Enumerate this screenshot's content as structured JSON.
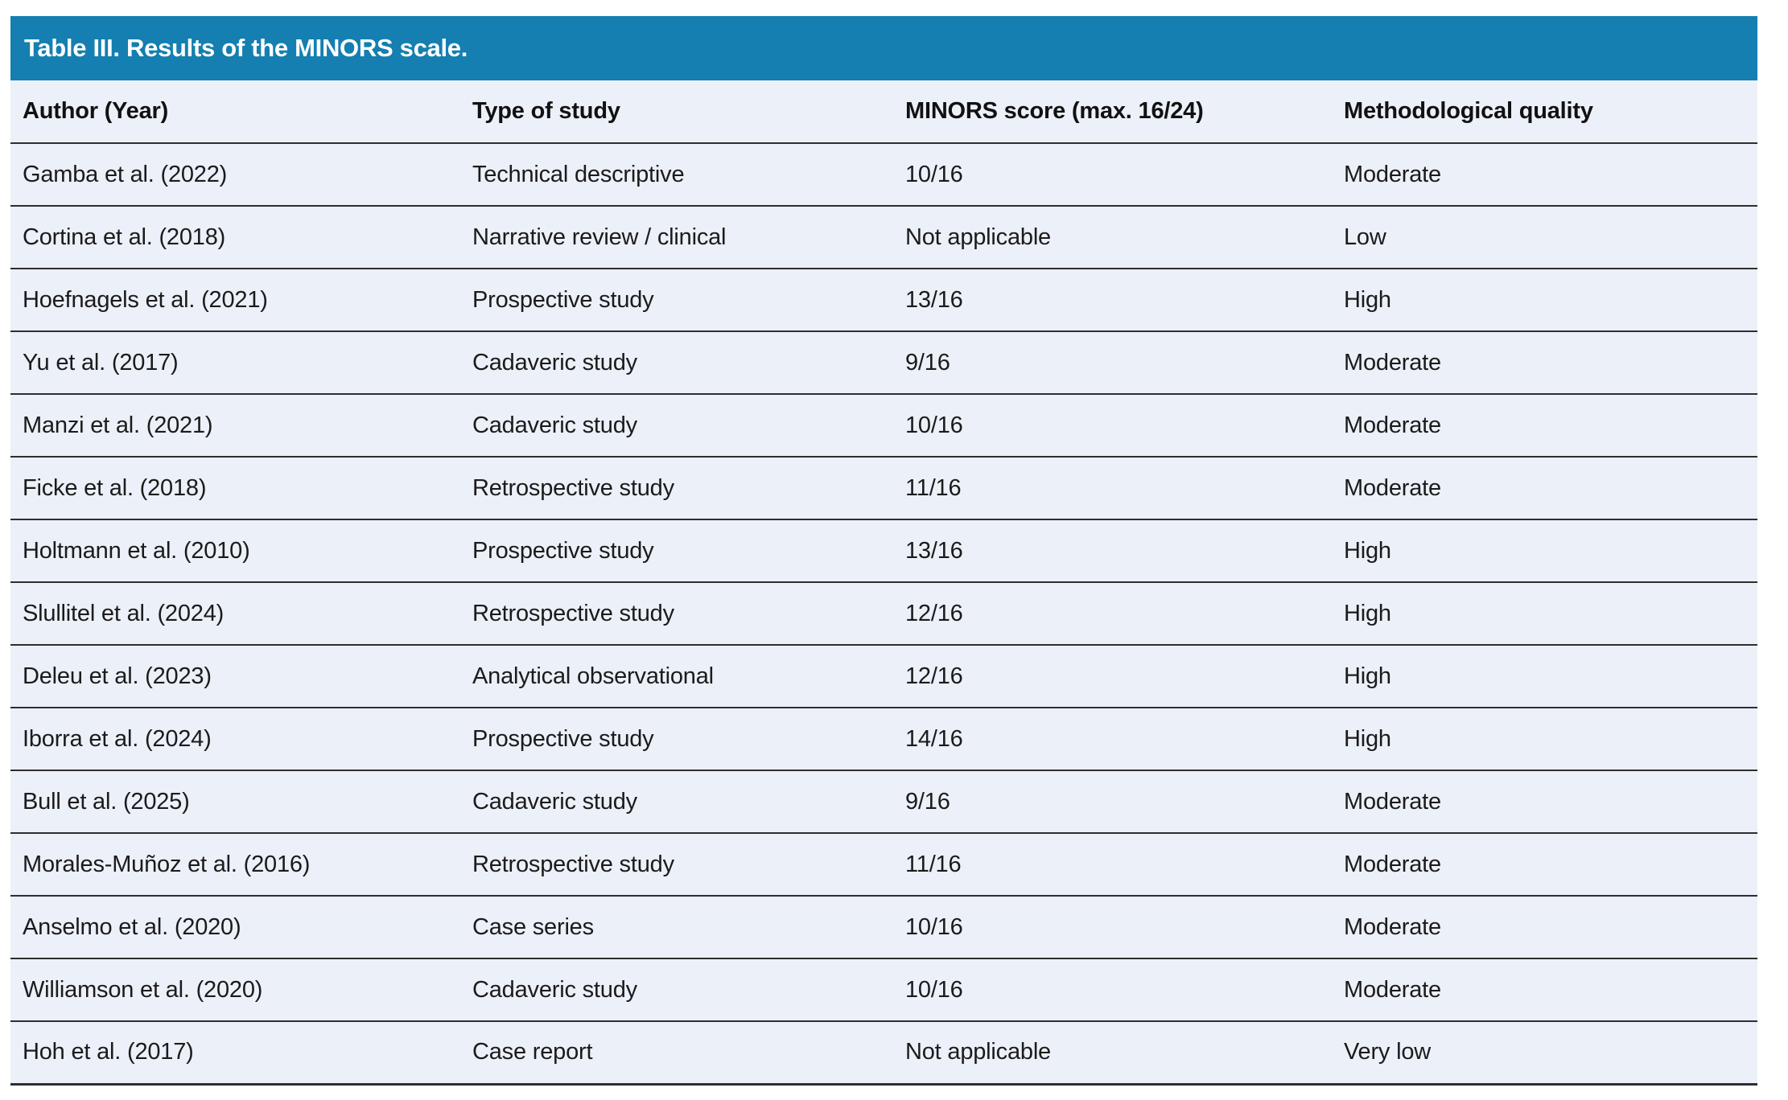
{
  "table": {
    "title": "Table III. Results of the MINORS scale.",
    "columns": [
      "Author (Year)",
      "Type of study",
      "MINORS score (max. 16/24)",
      "Methodological quality"
    ],
    "rows": [
      {
        "author": "Gamba et al. (2022)",
        "type": "Technical descriptive",
        "score": "10/16",
        "quality": "Moderate"
      },
      {
        "author": "Cortina et al. (2018)",
        "type": "Narrative review / clinical",
        "score": "Not applicable",
        "quality": "Low"
      },
      {
        "author": "Hoefnagels et al. (2021)",
        "type": "Prospective study",
        "score": "13/16",
        "quality": "High"
      },
      {
        "author": "Yu et al. (2017)",
        "type": "Cadaveric study",
        "score": "9/16",
        "quality": "Moderate"
      },
      {
        "author": "Manzi et al. (2021)",
        "type": "Cadaveric study",
        "score": "10/16",
        "quality": "Moderate"
      },
      {
        "author": "Ficke et al. (2018)",
        "type": "Retrospective study",
        "score": "11/16",
        "quality": "Moderate"
      },
      {
        "author": "Holtmann et al. (2010)",
        "type": "Prospective study",
        "score": "13/16",
        "quality": "High"
      },
      {
        "author": "Slullitel et al. (2024)",
        "type": "Retrospective study",
        "score": "12/16",
        "quality": "High"
      },
      {
        "author": "Deleu et al. (2023)",
        "type": "Analytical observational",
        "score": "12/16",
        "quality": "High"
      },
      {
        "author": "Iborra et al. (2024)",
        "type": "Prospective study",
        "score": "14/16",
        "quality": "High"
      },
      {
        "author": "Bull et al. (2025)",
        "type": "Cadaveric study",
        "score": "9/16",
        "quality": "Moderate"
      },
      {
        "author": "Morales-Muñoz et al. (2016)",
        "type": "Retrospective study",
        "score": "11/16",
        "quality": "Moderate"
      },
      {
        "author": "Anselmo et al. (2020)",
        "type": "Case series",
        "score": "10/16",
        "quality": "Moderate"
      },
      {
        "author": "Williamson et al. (2020)",
        "type": "Cadaveric study",
        "score": "10/16",
        "quality": "Moderate"
      },
      {
        "author": "Hoh et al. (2017)",
        "type": "Case report",
        "score": "Not applicable",
        "quality": "Very low"
      }
    ]
  },
  "colors": {
    "title_bar_bg": "#147fb0",
    "title_text": "#ffffff",
    "row_bg": "#ecf0f8",
    "divider": "#2e2e2e",
    "body_text": "#1b1b1b"
  }
}
